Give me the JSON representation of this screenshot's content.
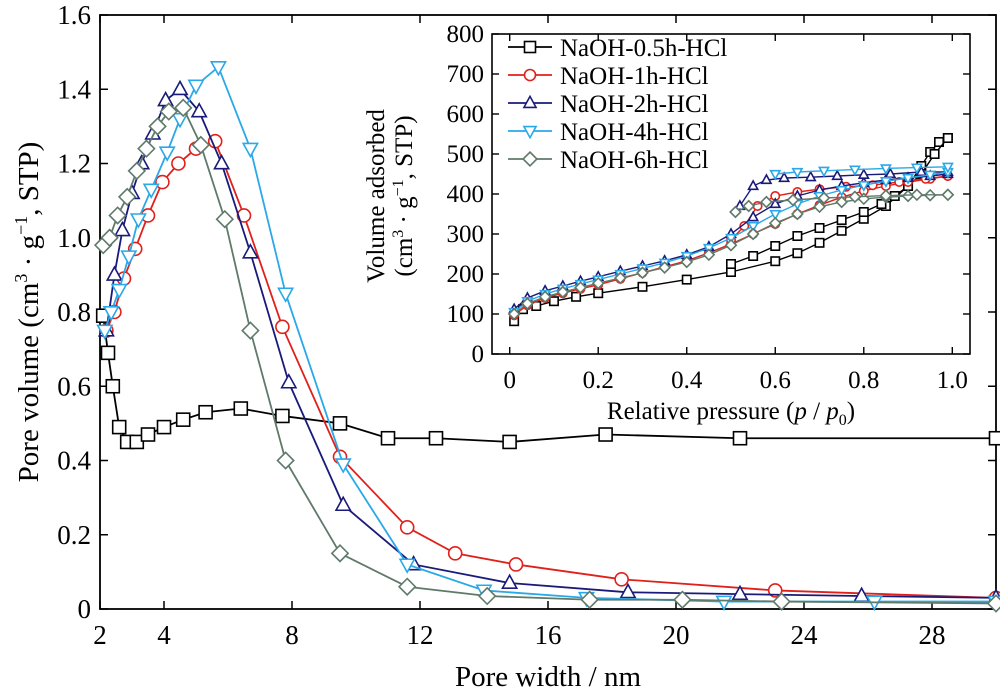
{
  "chart_data": [
    {
      "type": "line",
      "xlabel": "Pore width / nm",
      "ylabel": "Pore volume (cm3·g−1, STP)",
      "ylabel_parts": [
        "Pore volume (cm",
        "3",
        " · g",
        "−1",
        ", STP)"
      ],
      "xlim": [
        2,
        30
      ],
      "ylim": [
        0,
        1.6
      ],
      "xticks": [
        2,
        4,
        8,
        12,
        16,
        20,
        24,
        28
      ],
      "yticks": [
        0,
        0.2,
        0.4,
        0.6,
        0.8,
        1.0,
        1.2,
        1.4,
        1.6
      ],
      "xtick_labels": [
        "2",
        "4",
        "8",
        "12",
        "16",
        "20",
        "24",
        "28"
      ],
      "ytick_labels": [
        "0",
        "0.2",
        "0.4",
        "0.6",
        "0.8",
        "1.0",
        "1.2",
        "1.4",
        "1.6"
      ],
      "series": [
        {
          "name": "NaOH-0.5h-HCl",
          "color": "#000000",
          "marker": "square",
          "x": [
            2.1,
            2.25,
            2.4,
            2.6,
            2.85,
            3.15,
            3.5,
            4.0,
            4.6,
            5.3,
            6.4,
            7.7,
            9.5,
            11.0,
            12.5,
            14.8,
            17.8,
            22.0,
            30.0
          ],
          "y": [
            0.79,
            0.69,
            0.6,
            0.49,
            0.45,
            0.45,
            0.47,
            0.49,
            0.51,
            0.53,
            0.54,
            0.52,
            0.5,
            0.46,
            0.46,
            0.45,
            0.47,
            0.46,
            0.46
          ]
        },
        {
          "name": "NaOH-1h-HCl",
          "color": "#e0201b",
          "marker": "circle",
          "x": [
            2.2,
            2.45,
            2.75,
            3.1,
            3.5,
            3.95,
            4.45,
            5.0,
            5.6,
            6.5,
            7.7,
            9.5,
            11.6,
            13.1,
            15.0,
            18.3,
            23.1,
            30.0
          ],
          "y": [
            0.75,
            0.8,
            0.89,
            0.97,
            1.06,
            1.15,
            1.2,
            1.24,
            1.26,
            1.06,
            0.76,
            0.41,
            0.22,
            0.15,
            0.12,
            0.08,
            0.05,
            0.03
          ]
        },
        {
          "name": "NaOH-2h-HCl",
          "color": "#1a1a7a",
          "marker": "triangle-up",
          "x": [
            2.2,
            2.45,
            2.7,
            3.0,
            3.3,
            3.65,
            4.05,
            4.5,
            5.1,
            5.8,
            6.7,
            7.9,
            9.6,
            11.8,
            14.8,
            18.5,
            22.0,
            25.8,
            30.0
          ],
          "y": [
            0.75,
            0.9,
            1.02,
            1.12,
            1.2,
            1.28,
            1.37,
            1.4,
            1.34,
            1.2,
            0.96,
            0.61,
            0.28,
            0.12,
            0.07,
            0.045,
            0.04,
            0.035,
            0.03
          ]
        },
        {
          "name": "NaOH-4h-HCl",
          "color": "#2aa8e8",
          "marker": "triangle-down",
          "x": [
            2.15,
            2.35,
            2.6,
            2.9,
            3.2,
            3.6,
            4.1,
            4.5,
            5.0,
            5.7,
            6.7,
            7.8,
            9.6,
            11.6,
            14.0,
            17.2,
            21.5,
            26.2,
            30.0
          ],
          "y": [
            0.75,
            0.8,
            0.86,
            0.95,
            1.05,
            1.13,
            1.23,
            1.32,
            1.41,
            1.46,
            1.24,
            0.85,
            0.39,
            0.12,
            0.05,
            0.03,
            0.02,
            0.02,
            0.02
          ]
        },
        {
          "name": "NaOH-6h-HCl",
          "color": "#5f7a6a",
          "marker": "diamond",
          "x": [
            2.1,
            2.3,
            2.55,
            2.85,
            3.15,
            3.45,
            3.8,
            4.15,
            4.6,
            5.15,
            5.9,
            6.7,
            7.8,
            9.5,
            11.6,
            14.1,
            17.3,
            20.2,
            23.3,
            30.0
          ],
          "y": [
            0.98,
            1.0,
            1.06,
            1.11,
            1.18,
            1.24,
            1.3,
            1.34,
            1.35,
            1.25,
            1.05,
            0.75,
            0.4,
            0.15,
            0.06,
            0.035,
            0.025,
            0.025,
            0.02,
            0.015
          ]
        }
      ]
    },
    {
      "type": "line",
      "xlabel_parts": [
        "Relative pressure (",
        "p",
        " / ",
        "p",
        "0",
        ")"
      ],
      "ylabel_line1": "Volume adsorbed",
      "ylabel_line2_parts": [
        "(cm",
        "3",
        " · g",
        "−1",
        ", STP)"
      ],
      "xlim": [
        -0.04,
        1.04
      ],
      "ylim": [
        0,
        800
      ],
      "xticks": [
        0,
        0.2,
        0.4,
        0.6,
        0.8,
        1.0
      ],
      "yticks": [
        0,
        100,
        200,
        300,
        400,
        500,
        600,
        700,
        800
      ],
      "xtick_labels": [
        "0",
        "0.2",
        "0.4",
        "0.6",
        "0.8",
        "1.0"
      ],
      "ytick_labels": [
        "0",
        "100",
        "200",
        "300",
        "400",
        "500",
        "600",
        "700",
        "800"
      ],
      "legend": [
        "NaOH-0.5h-HCl",
        "NaOH-1h-HCl",
        "NaOH-2h-HCl",
        "NaOH-4h-HCl",
        "NaOH-6h-HCl"
      ],
      "legend_position": "top-left",
      "series": [
        {
          "name": "NaOH-0.5h-HCl",
          "color": "#000000",
          "marker": "square",
          "adsorption": {
            "x": [
              0.01,
              0.03,
              0.06,
              0.1,
              0.15,
              0.2,
              0.3,
              0.4,
              0.5,
              0.6,
              0.65,
              0.7,
              0.75,
              0.8,
              0.85,
              0.9,
              0.93,
              0.95,
              0.97,
              0.99
            ],
            "y": [
              82,
              112,
              120,
              132,
              143,
              152,
              168,
              186,
              205,
              232,
              252,
              278,
              308,
              338,
              370,
              420,
              470,
              505,
              530,
              540
            ]
          },
          "desorption": {
            "x": [
              0.99,
              0.96,
              0.93,
              0.9,
              0.87,
              0.84,
              0.8,
              0.75,
              0.7,
              0.65,
              0.6,
              0.55,
              0.5
            ],
            "y": [
              540,
              500,
              450,
              420,
              395,
              375,
              355,
              335,
              315,
              295,
              270,
              245,
              225
            ]
          }
        },
        {
          "name": "NaOH-1h-HCl",
          "color": "#e0201b",
          "marker": "circle",
          "adsorption": {
            "x": [
              0.01,
              0.04,
              0.08,
              0.12,
              0.16,
              0.2,
              0.25,
              0.3,
              0.35,
              0.4,
              0.45,
              0.5,
              0.55,
              0.6,
              0.65,
              0.7,
              0.75,
              0.8,
              0.85,
              0.9,
              0.95,
              0.99
            ],
            "y": [
              97,
              122,
              140,
              152,
              163,
              173,
              188,
              203,
              218,
              233,
              253,
              275,
              300,
              325,
              350,
              372,
              392,
              408,
              420,
              430,
              438,
              445
            ]
          },
          "desorption": {
            "x": [
              0.99,
              0.94,
              0.88,
              0.82,
              0.76,
              0.7,
              0.65,
              0.6,
              0.56,
              0.53,
              0.5
            ],
            "y": [
              445,
              438,
              430,
              422,
              418,
              412,
              405,
              395,
              370,
              320,
              285
            ]
          }
        },
        {
          "name": "NaOH-2h-HCl",
          "color": "#1a1a7a",
          "marker": "triangle-up",
          "adsorption": {
            "x": [
              0.01,
              0.04,
              0.08,
              0.12,
              0.16,
              0.2,
              0.25,
              0.3,
              0.35,
              0.4,
              0.45,
              0.5,
              0.55,
              0.6,
              0.65,
              0.7,
              0.75,
              0.8,
              0.85,
              0.9,
              0.95,
              0.99
            ],
            "y": [
              112,
              140,
              158,
              170,
              182,
              193,
              207,
              220,
              233,
              248,
              268,
              300,
              342,
              375,
              395,
              410,
              420,
              428,
              435,
              440,
              445,
              450
            ]
          },
          "desorption": {
            "x": [
              0.99,
              0.93,
              0.86,
              0.8,
              0.74,
              0.68,
              0.62,
              0.58,
              0.55,
              0.52
            ],
            "y": [
              455,
              455,
              450,
              448,
              445,
              442,
              440,
              435,
              420,
              370
            ]
          }
        },
        {
          "name": "NaOH-4h-HCl",
          "color": "#2aa8e8",
          "marker": "triangle-down",
          "adsorption": {
            "x": [
              0.01,
              0.04,
              0.08,
              0.12,
              0.16,
              0.2,
              0.25,
              0.3,
              0.35,
              0.4,
              0.45,
              0.5,
              0.55,
              0.6,
              0.65,
              0.7,
              0.75,
              0.8,
              0.85,
              0.9,
              0.95,
              0.99
            ],
            "y": [
              105,
              132,
              150,
              163,
              175,
              186,
              200,
              214,
              228,
              245,
              265,
              290,
              320,
              350,
              375,
              395,
              410,
              422,
              432,
              440,
              448,
              455
            ]
          },
          "desorption": {
            "x": [
              0.99,
              0.92,
              0.85,
              0.78,
              0.71,
              0.65,
              0.6
            ],
            "y": [
              468,
              466,
              464,
              461,
              458,
              455,
              450
            ]
          }
        },
        {
          "name": "NaOH-6h-HCl",
          "color": "#5f7a6a",
          "marker": "diamond",
          "adsorption": {
            "x": [
              0.01,
              0.04,
              0.08,
              0.12,
              0.16,
              0.2,
              0.25,
              0.3,
              0.35,
              0.4,
              0.45,
              0.5,
              0.55,
              0.6,
              0.65,
              0.7,
              0.75,
              0.8,
              0.85,
              0.9,
              0.95,
              0.99
            ],
            "y": [
              100,
              126,
              143,
              155,
              166,
              177,
              190,
              203,
              216,
              230,
              248,
              272,
              300,
              327,
              350,
              368,
              380,
              388,
              392,
              395,
              397,
              398
            ]
          },
          "desorption": {
            "x": [
              0.99,
              0.92,
              0.85,
              0.78,
              0.71,
              0.64,
              0.58,
              0.54,
              0.51
            ],
            "y": [
              398,
              398,
              396,
              393,
              390,
              385,
              380,
              370,
              355
            ]
          }
        }
      ]
    }
  ]
}
